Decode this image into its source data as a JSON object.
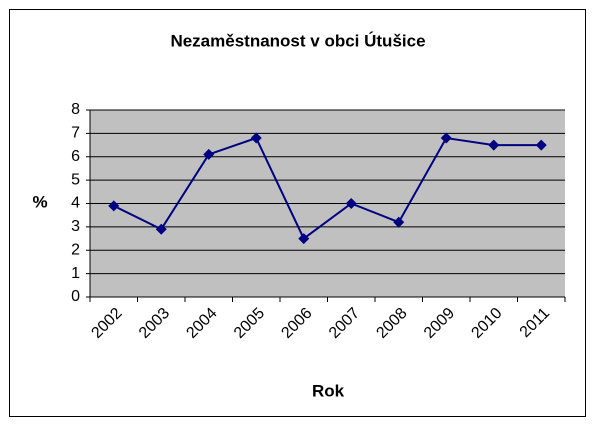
{
  "chart_data": {
    "type": "line",
    "title": "Nezaměstnanost v obci Útušice",
    "x_label": "Rok",
    "y_label": "%",
    "categories": [
      "2002",
      "2003",
      "2004",
      "2005",
      "2006",
      "2007",
      "2008",
      "2009",
      "2010",
      "2011"
    ],
    "series": [
      {
        "name": "Nezaměstnanost",
        "color": "#000080",
        "values": [
          3.9,
          2.9,
          6.1,
          6.8,
          2.5,
          4.0,
          3.2,
          6.8,
          6.5,
          6.5
        ]
      }
    ],
    "ylim": [
      0,
      8
    ],
    "yticks": [
      0,
      1,
      2,
      3,
      4,
      5,
      6,
      7,
      8
    ],
    "grid": true
  }
}
